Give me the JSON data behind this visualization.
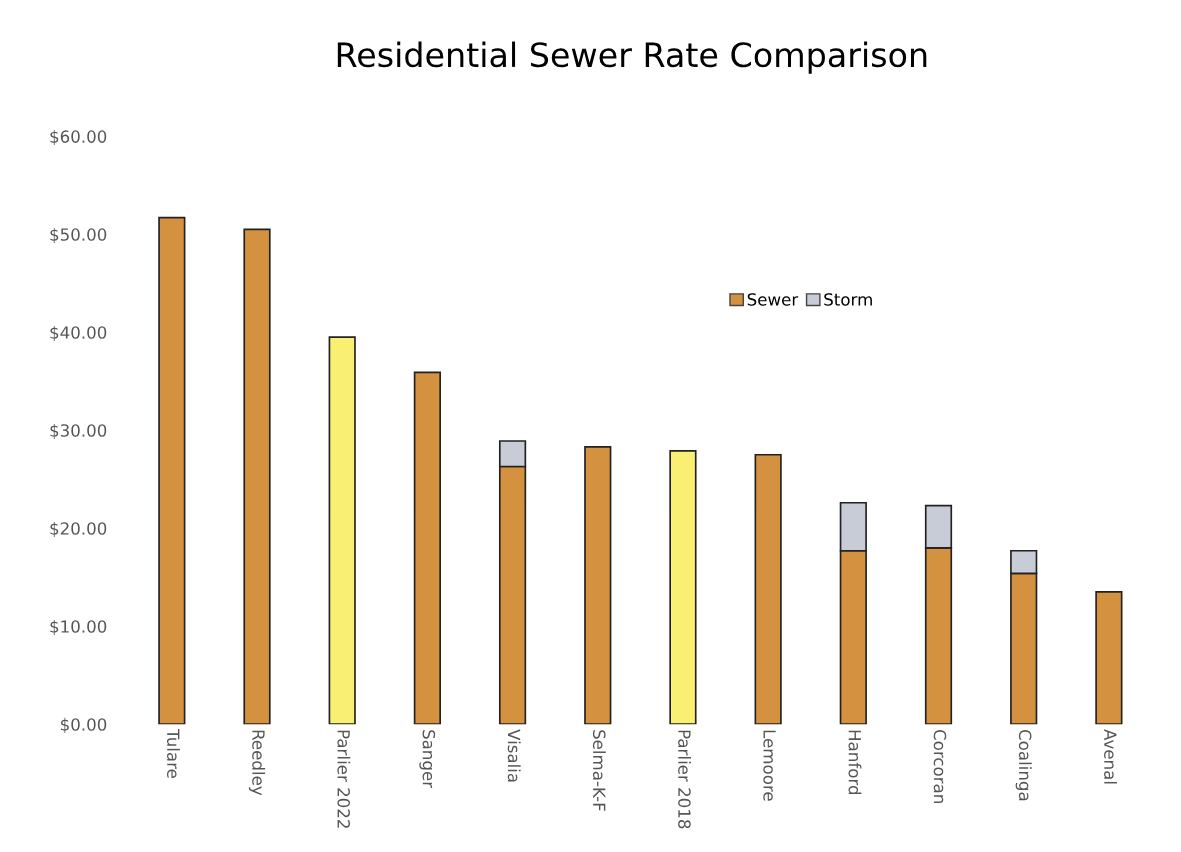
{
  "chart_data": {
    "type": "bar",
    "title": "Residential Sewer Rate Comparison",
    "stacked": true,
    "categories": [
      "Tulare",
      "Reedley",
      "Parlier 2022",
      "Sanger",
      "Visalia",
      "Selma-K-F",
      "Parlier 2018",
      "Lemoore",
      "Hanford",
      "Corcoran",
      "Coalinga",
      "Avenal"
    ],
    "series": [
      {
        "name": "Sewer",
        "color": "#d4913f",
        "colors": [
          "#d4913f",
          "#d4913f",
          "#f9ef73",
          "#d4913f",
          "#d4913f",
          "#d4913f",
          "#f9ef73",
          "#d4913f",
          "#d4913f",
          "#d4913f",
          "#d4913f",
          "#d4913f"
        ],
        "values": [
          51.7,
          50.5,
          39.5,
          35.9,
          26.3,
          28.3,
          27.9,
          27.5,
          17.7,
          18.0,
          15.4,
          13.5
        ]
      },
      {
        "name": "Storm",
        "color": "#c8ccd6",
        "values": [
          null,
          null,
          null,
          null,
          2.6,
          null,
          null,
          null,
          4.9,
          4.3,
          2.3,
          null
        ]
      }
    ],
    "ylim": [
      0,
      60
    ],
    "yticks": [
      {
        "value": 0,
        "label": "$0.00"
      },
      {
        "value": 10,
        "label": "$10.00"
      },
      {
        "value": 20,
        "label": "$20.00"
      },
      {
        "value": 30,
        "label": "$30.00"
      },
      {
        "value": 40,
        "label": "$40.00"
      },
      {
        "value": 50,
        "label": "$50.00"
      },
      {
        "value": 60,
        "label": "$60.00"
      }
    ],
    "legend": "right",
    "grid": false
  }
}
